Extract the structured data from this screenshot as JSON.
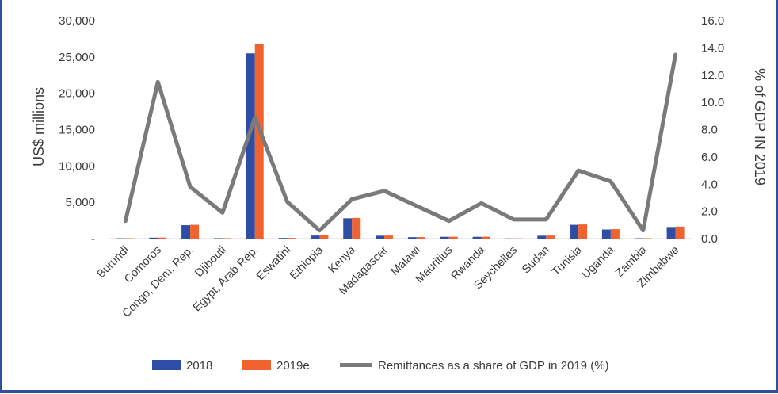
{
  "colors": {
    "series_2018": "#2e4ea5",
    "series_2019e": "#f0622f",
    "share_line": "#7a7a7a",
    "frame": "#2f4f9f"
  },
  "chart_data": {
    "type": "bar",
    "categories": [
      "Burundi",
      "Comoros",
      "Congo, Dem. Rep.",
      "Djibouti",
      "Egypt, Arab Rep.",
      "Eswatini",
      "Ethiopia",
      "Kenya",
      "Madagascar",
      "Malawi",
      "Mauritius",
      "Rwanda",
      "Seychelles",
      "Sudan",
      "Tunisia",
      "Uganda",
      "Zambia",
      "Zimbabwe"
    ],
    "series": [
      {
        "name": "2018",
        "axis": "left",
        "values": [
          45,
          130,
          1850,
          60,
          25500,
          90,
          420,
          2800,
          400,
          200,
          250,
          250,
          25,
          400,
          1900,
          1250,
          50,
          1600
        ]
      },
      {
        "name": "2019e",
        "axis": "left",
        "values": [
          48,
          140,
          1900,
          62,
          26800,
          95,
          480,
          2850,
          420,
          210,
          260,
          260,
          27,
          420,
          1950,
          1300,
          55,
          1650
        ]
      },
      {
        "name": "Remittances as a share of GDP in 2019 (%)",
        "type": "line",
        "axis": "right",
        "values": [
          1.3,
          11.5,
          3.8,
          1.9,
          8.9,
          2.7,
          0.6,
          2.9,
          3.5,
          2.4,
          1.3,
          2.6,
          1.4,
          1.4,
          5.0,
          4.2,
          0.6,
          13.5
        ]
      }
    ],
    "ylabel": "US$ millions",
    "y2label": "% of GDP IN 2019",
    "ylim": [
      0,
      30000
    ],
    "y2lim": [
      0,
      16
    ],
    "yticks": [
      "-",
      "5,000",
      "10,000",
      "15,000",
      "20,000",
      "25,000",
      "30,000"
    ],
    "y2ticks": [
      "0.0",
      "2.0",
      "4.0",
      "6.0",
      "8.0",
      "10.0",
      "12.0",
      "14.0",
      "16.0"
    ],
    "legend": [
      "2018",
      "2019e",
      "Remittances as a share of GDP in 2019 (%)"
    ],
    "legend_position": "bottom",
    "grid": false
  }
}
